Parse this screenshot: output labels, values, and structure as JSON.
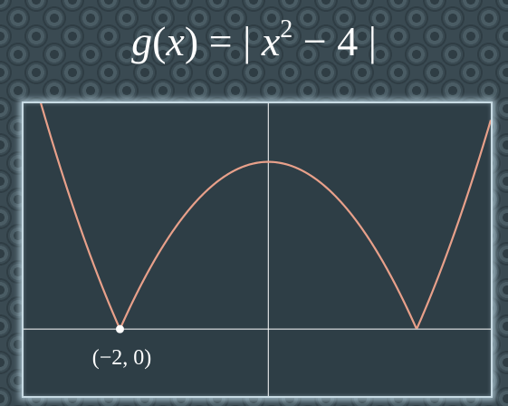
{
  "title": {
    "func": "g",
    "var": "x",
    "open": "(",
    "close": ")",
    "equals": " = ",
    "bar": "|",
    "exp": "2",
    "minus": " − ",
    "const": "4"
  },
  "chart_data": {
    "type": "line",
    "title": "g(x) = | x² − 4 |",
    "xlabel": "",
    "ylabel": "",
    "xlim": [
      -3.3,
      3.0
    ],
    "ylim": [
      -1.6,
      5.4
    ],
    "grid": false,
    "legend": "none",
    "series": [
      {
        "function": "|x^2 - 4|",
        "color": "#e8a08a",
        "x": [
          -3.3,
          -3.0,
          -2.7,
          -2.4,
          -2.2,
          -2.0,
          -1.8,
          -1.5,
          -1.2,
          -0.9,
          -0.6,
          -0.3,
          0.0,
          0.3,
          0.6,
          0.9,
          1.2,
          1.5,
          1.8,
          2.0,
          2.2,
          2.4,
          2.7,
          3.0
        ],
        "y": [
          6.89,
          5.0,
          3.29,
          1.76,
          0.84,
          0.0,
          0.76,
          1.75,
          2.56,
          3.19,
          3.64,
          3.91,
          4.0,
          3.91,
          3.64,
          3.19,
          2.56,
          1.75,
          0.76,
          0.0,
          0.84,
          1.76,
          3.29,
          5.0
        ]
      }
    ],
    "points": [
      {
        "x": -2,
        "y": 0,
        "label": "(−2, 0)",
        "color": "#ffffff"
      }
    ],
    "axis_color": "#ffffff",
    "background_color": "#2e3e46"
  }
}
